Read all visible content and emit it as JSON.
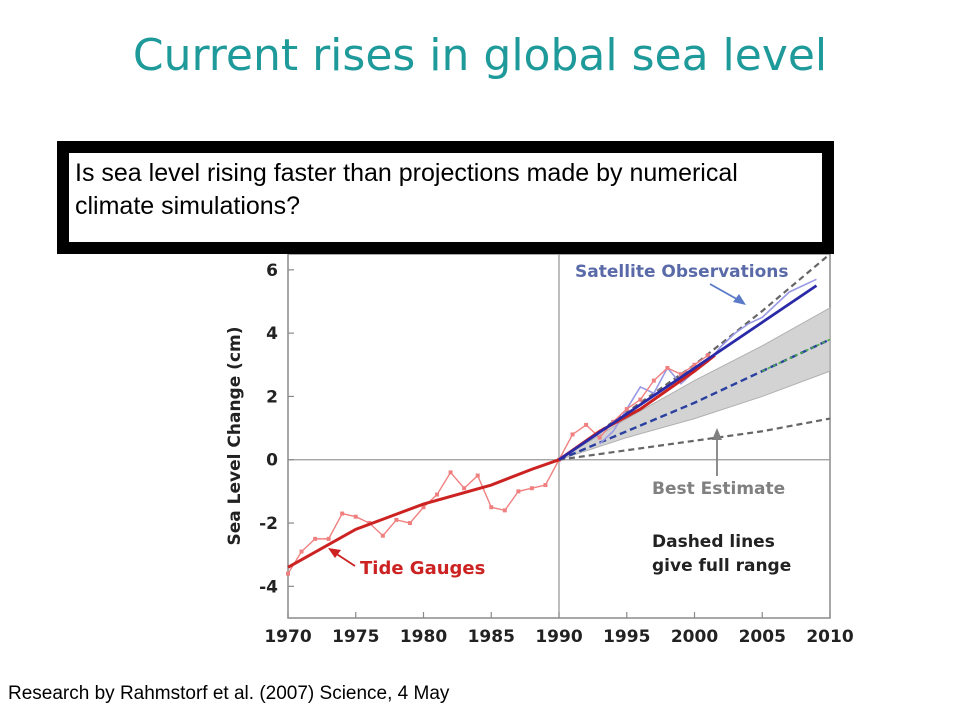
{
  "slide": {
    "title": "Current rises in global sea level",
    "question": "Is sea level rising faster than projections made by numerical climate simulations?",
    "citation": "Research by Rahmstorf et al. (2007) Science, 4 May"
  },
  "colors": {
    "title": "#1f9a9a",
    "tide_observed": "#f08080",
    "tide_trend": "#cc2222",
    "satellite_observed": "#9a9ae6",
    "satellite_trend": "#2a2aa8",
    "best_estimate": "#2a40a0",
    "range_dashed": "#666666",
    "uncertainty_band": "#cfcfcf",
    "annotation_gray": "#808080"
  },
  "chart_data": {
    "type": "line",
    "title": "",
    "xlabel": "",
    "ylabel": "Sea Level Change (cm)",
    "xlim": [
      1970,
      2010
    ],
    "ylim": [
      -5,
      6.5
    ],
    "xticks": [
      "1970",
      "1975",
      "1980",
      "1985",
      "1990",
      "1995",
      "2000",
      "2005",
      "2010"
    ],
    "yticks": [
      "-4",
      "-2",
      "0",
      "2",
      "4",
      "6"
    ],
    "reference_lines": {
      "x": 1990,
      "y": 0
    },
    "annotations": {
      "satellite": "Satellite Observations",
      "tide": "Tide Gauges",
      "best_estimate": "Best Estimate",
      "dashed_line1": "Dashed lines",
      "dashed_line2": "give full range"
    },
    "series": [
      {
        "x": [
          1970,
          1971,
          1972,
          1973,
          1974,
          1975,
          1976,
          1977,
          1978,
          1979,
          1980,
          1981,
          1982,
          1983,
          1984,
          1985,
          1986,
          1987,
          1988,
          1989,
          1990,
          1991,
          1992,
          1993,
          1994,
          1995,
          1996,
          1997,
          1998,
          1999,
          2000,
          2001
        ],
        "values": [
          -3.6,
          -2.9,
          -2.5,
          -2.5,
          -1.7,
          -1.8,
          -2.0,
          -2.4,
          -1.9,
          -2.0,
          -1.5,
          -1.1,
          -0.4,
          -0.9,
          -0.5,
          -1.5,
          -1.6,
          -1.0,
          -0.9,
          -0.8,
          0.0,
          0.8,
          1.1,
          0.7,
          1.2,
          1.6,
          1.9,
          2.5,
          2.9,
          2.7,
          3.0,
          3.3
        ]
      },
      {
        "x": [
          1970,
          1975,
          1980,
          1985,
          1988,
          1990,
          1993,
          1996,
          2000,
          2001.5
        ],
        "values": [
          -3.4,
          -2.2,
          -1.4,
          -0.8,
          -0.3,
          0.0,
          0.9,
          1.6,
          2.8,
          3.3
        ]
      },
      {
        "x": [
          1993,
          1994,
          1995,
          1996,
          1997,
          1998,
          1999,
          2000,
          2001,
          2002,
          2003,
          2004,
          2005,
          2006,
          2007,
          2008,
          2009
        ],
        "values": [
          0.5,
          0.9,
          1.6,
          2.3,
          2.1,
          2.9,
          2.4,
          2.8,
          3.1,
          3.6,
          4.0,
          4.3,
          4.5,
          4.9,
          5.3,
          5.5,
          5.7
        ]
      },
      {
        "x": [
          1990,
          2009
        ],
        "values": [
          0.0,
          5.5
        ]
      },
      {
        "x": [
          1990,
          1995,
          2000,
          2005,
          2010
        ],
        "values": [
          0.0,
          0.9,
          1.8,
          2.8,
          3.8
        ]
      },
      {
        "x": [
          1990,
          1995,
          2000,
          2005,
          2010
        ],
        "values": [
          0.0,
          1.5,
          3.0,
          4.7,
          6.5
        ]
      },
      {
        "x": [
          1990,
          1995,
          2000,
          2005,
          2010
        ],
        "values": [
          0.0,
          0.3,
          0.6,
          0.9,
          1.3
        ]
      },
      {
        "x": [
          1990,
          1995,
          2000,
          2005,
          2010
        ],
        "upper": [
          0.0,
          1.3,
          2.5,
          3.6,
          4.8
        ],
        "lower": [
          0.0,
          0.7,
          1.3,
          2.0,
          2.8
        ]
      }
    ]
  }
}
